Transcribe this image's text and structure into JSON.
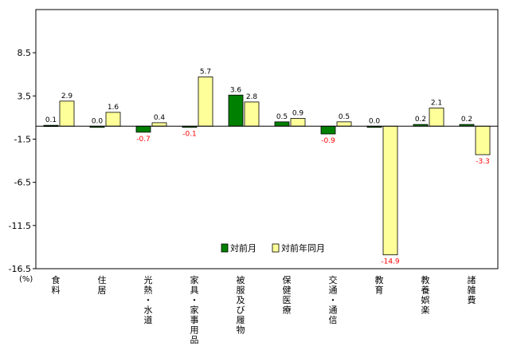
{
  "chart_data": {
    "type": "bar",
    "unit_label": "(%)",
    "categories": [
      [
        "食",
        "料"
      ],
      [
        "住",
        "居"
      ],
      [
        "光",
        "熱",
        "・",
        "水",
        "道"
      ],
      [
        "家",
        "具",
        "・",
        "家",
        "事",
        "用",
        "品"
      ],
      [
        "被",
        "服",
        "及",
        "び",
        "履",
        "物"
      ],
      [
        "保",
        "健",
        "医",
        "療"
      ],
      [
        "交",
        "通",
        "・",
        "通",
        "信"
      ],
      [
        "教",
        "育"
      ],
      [
        "教",
        "養",
        "娯",
        "楽"
      ],
      [
        "諸",
        "雑",
        "費"
      ]
    ],
    "series": [
      {
        "name": "対前月",
        "color": "#008000",
        "values": [
          0.1,
          0.0,
          -0.7,
          -0.1,
          3.6,
          0.5,
          -0.9,
          0.0,
          0.2,
          0.2
        ],
        "labels": [
          "0.1",
          "0.0",
          "-0.7",
          "-0.1",
          "3.6",
          "0.5",
          "-0.9",
          "0.0",
          "0.2",
          "0.2"
        ]
      },
      {
        "name": "対前年同月",
        "color": "#ffff99",
        "values": [
          2.9,
          1.6,
          0.4,
          5.7,
          2.8,
          0.9,
          0.5,
          -14.9,
          2.1,
          -3.3
        ],
        "labels": [
          "2.9",
          "1.6",
          "0.4",
          "5.7",
          "2.8",
          "0.9",
          "0.5",
          "-14.9",
          "2.1",
          "-3.3"
        ]
      }
    ],
    "ylim": [
      -16.5,
      13.5
    ],
    "yticks": [
      8.5,
      3.5,
      -1.5,
      -6.5,
      -11.5,
      -16.5
    ],
    "ytick_labels": [
      "8.5",
      "3.5",
      "-1.5",
      "-6.5",
      "-11.5",
      "-16.5"
    ],
    "negative_label_color": "#ff0000",
    "legend_position": "bottom-center",
    "grid": false
  }
}
